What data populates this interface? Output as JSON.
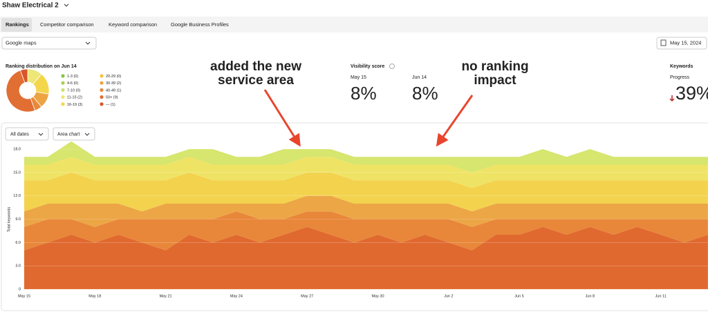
{
  "header": {
    "title": "Shaw Electrical 2",
    "tabs": [
      "Rankings",
      "Competitor comparison",
      "Keyword comparison",
      "Google Business Profiles"
    ],
    "source": "Google maps",
    "date": "May 15, 2024"
  },
  "visibility": {
    "title": "Visibility score",
    "items": [
      {
        "label": "May 15",
        "value": "8%"
      },
      {
        "label": "Jun 14",
        "value": "8%"
      }
    ]
  },
  "keywords": {
    "title": "Keywords",
    "label": "Progress",
    "value": "39%"
  },
  "annotations": [
    {
      "lines": [
        "added the new",
        "service area"
      ]
    },
    {
      "lines": [
        "no ranking",
        "impact"
      ]
    }
  ],
  "controls": [
    "All dates",
    "Area chart"
  ],
  "chart_data": [
    {
      "type": "pie",
      "title": "Ranking distribution on Jun 14",
      "categories": [
        "1-3 (0)",
        "4-6 (0)",
        "7-10 (0)",
        "11-15 (2)",
        "16-19 (3)",
        "20-29 (0)",
        "30-39 (2)",
        "40-49 (1)",
        "50+ (9)",
        "— (1)"
      ],
      "values": [
        0,
        0,
        0,
        2,
        3,
        0,
        2,
        1,
        9,
        1
      ],
      "colors": [
        "#8bc34a",
        "#a8d152",
        "#c9e36c",
        "#ece776",
        "#f4d64c",
        "#f2c244",
        "#eca443",
        "#e7893b",
        "#e16e32",
        "#d9552b"
      ]
    },
    {
      "type": "area",
      "ylabel": "Total keywords",
      "categories": [
        "May 15",
        null,
        null,
        "May 18",
        null,
        null,
        "May 21",
        null,
        null,
        "May 24",
        null,
        null,
        "May 27",
        null,
        null,
        "May 30",
        null,
        null,
        "Jun 2",
        null,
        null,
        "Jun 5",
        null,
        null,
        "Jun 8",
        null,
        null,
        "Jun 11",
        null,
        null
      ],
      "ylim": [
        0,
        18
      ],
      "yticks": [
        0,
        {
          "value": 3,
          "label": "3.0"
        },
        {
          "value": 6,
          "label": "6.0"
        },
        {
          "value": 9,
          "label": "9.0"
        },
        {
          "value": 12,
          "label": "12.0"
        },
        {
          "value": 15,
          "label": "15.0"
        },
        {
          "value": 18,
          "label": "18.0"
        }
      ],
      "grid": true,
      "series": [
        {
          "color": "#e0692f",
          "values": [
            5,
            6,
            7,
            6,
            7,
            6,
            5,
            7,
            6,
            7,
            6,
            7,
            8,
            7,
            6,
            7,
            6,
            7,
            6,
            5,
            7,
            7,
            8,
            7,
            8,
            7,
            8,
            7,
            6,
            7
          ]
        },
        {
          "color": "#e8873a",
          "values": [
            3,
            3,
            2,
            2,
            2,
            3,
            4,
            2,
            3,
            3,
            3,
            2,
            2,
            3,
            3,
            2,
            3,
            2,
            3,
            3,
            2,
            2,
            1,
            2,
            1,
            2,
            1,
            2,
            3,
            2
          ]
        },
        {
          "color": "#eca646",
          "values": [
            2,
            2,
            2,
            3,
            2,
            1,
            2,
            2,
            2,
            1,
            2,
            2,
            2,
            2,
            2,
            2,
            2,
            2,
            2,
            2,
            2,
            2,
            2,
            2,
            2,
            2,
            2,
            2,
            2,
            2
          ]
        },
        {
          "color": "#f3d24e",
          "values": [
            4,
            3,
            4,
            3,
            3,
            4,
            3,
            4,
            3,
            3,
            3,
            3,
            3,
            3,
            3,
            3,
            3,
            3,
            3,
            3,
            3,
            3,
            3,
            3,
            3,
            3,
            3,
            3,
            3,
            3
          ]
        },
        {
          "color": "#efe365",
          "values": [
            2,
            2,
            2,
            2,
            2,
            2,
            2,
            2,
            2,
            2,
            2,
            2,
            2,
            2,
            2,
            2,
            2,
            2,
            2,
            2,
            2,
            2,
            2,
            2,
            2,
            2,
            2,
            2,
            2,
            2
          ]
        },
        {
          "color": "#d6e66e",
          "values": [
            1,
            1,
            2,
            1,
            1,
            1,
            1,
            1,
            2,
            1,
            1,
            2,
            1,
            1,
            1,
            1,
            1,
            1,
            1,
            2,
            1,
            1,
            2,
            1,
            2,
            1,
            1,
            1,
            1,
            1
          ]
        }
      ]
    }
  ]
}
